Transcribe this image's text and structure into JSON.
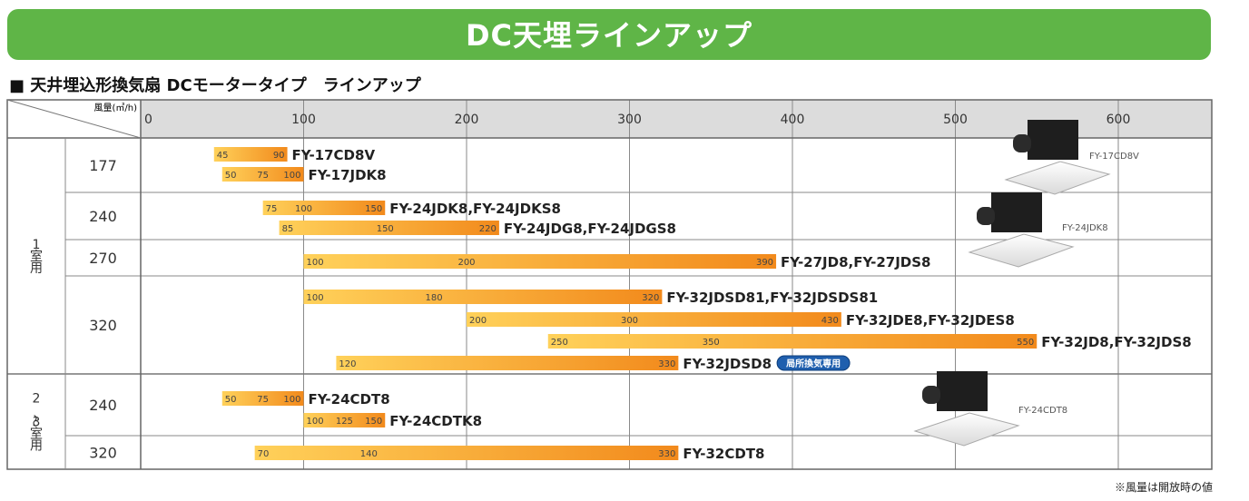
{
  "banner_title": "DC天埋ラインアップ",
  "subtitle": "■ 天井埋込形換気扇 DCモータータイプ　ラインアップ",
  "note": "※風量は開放時の値",
  "colors": {
    "banner": "#5fb547",
    "bar_start": "#ffd15a",
    "bar_end": "#f28a1c",
    "header_bg": "#dcdcdc",
    "badge": "#1f5fae"
  },
  "chart_data": {
    "type": "bar",
    "orientation": "horizontal-range",
    "xlabel": "風量(㎥/h)",
    "xlim": [
      0,
      600
    ],
    "xticks": [
      0,
      100,
      200,
      300,
      400,
      500,
      600
    ],
    "grid": true,
    "groups": [
      {
        "label": "1室用",
        "rows": [
          "177",
          "240",
          "270",
          "320"
        ]
      },
      {
        "label": "2〜3室用",
        "rows": [
          "240",
          "320"
        ]
      }
    ],
    "rows": [
      {
        "size": "177",
        "group": "1室用",
        "bars": [
          {
            "model": "FY-17CD8V",
            "min": 45,
            "max": 90,
            "labels": [
              45,
              90
            ]
          },
          {
            "model": "FY-17JDK8",
            "min": 50,
            "max": 100,
            "labels": [
              50,
              75,
              100
            ]
          }
        ]
      },
      {
        "size": "240",
        "group": "1室用",
        "bars": [
          {
            "model": "FY-24JDK8,FY-24JDKS8",
            "min": 75,
            "max": 150,
            "labels": [
              75,
              100,
              150
            ]
          },
          {
            "model": "FY-24JDG8,FY-24JDGS8",
            "min": 85,
            "max": 220,
            "labels": [
              85,
              150,
              220
            ]
          }
        ]
      },
      {
        "size": "270",
        "group": "1室用",
        "bars": [
          {
            "model": "FY-27JD8,FY-27JDS8",
            "min": 100,
            "max": 390,
            "labels": [
              100,
              200,
              390
            ]
          }
        ]
      },
      {
        "size": "320",
        "group": "1室用",
        "bars": [
          {
            "model": "FY-32JDSD81,FY-32JDSDS81",
            "min": 100,
            "max": 320,
            "labels": [
              100,
              180,
              320
            ]
          },
          {
            "model": "FY-32JDE8,FY-32JDES8",
            "min": 200,
            "max": 430,
            "labels": [
              200,
              300,
              430
            ]
          },
          {
            "model": "FY-32JD8,FY-32JDS8",
            "min": 250,
            "max": 550,
            "labels": [
              250,
              350,
              550
            ]
          },
          {
            "model": "FY-32JDSD8",
            "min": 120,
            "max": 330,
            "labels": [
              120,
              330
            ],
            "badge": "局所換気専用"
          }
        ]
      },
      {
        "size": "240",
        "group": "2〜3室用",
        "bars": [
          {
            "model": "FY-24CDT8",
            "min": 50,
            "max": 100,
            "labels": [
              50,
              75,
              100
            ]
          },
          {
            "model": "FY-24CDTK8",
            "min": 100,
            "max": 150,
            "labels": [
              100,
              125,
              150
            ]
          }
        ]
      },
      {
        "size": "320",
        "group": "2〜3室用",
        "bars": [
          {
            "model": "FY-32CDT8",
            "min": 70,
            "max": 330,
            "labels": [
              70,
              140,
              330
            ]
          }
        ]
      }
    ],
    "product_images": [
      {
        "caption": "FY-17CD8V"
      },
      {
        "caption": "FY-24JDK8"
      },
      {
        "caption": "FY-24CDT8"
      }
    ]
  }
}
